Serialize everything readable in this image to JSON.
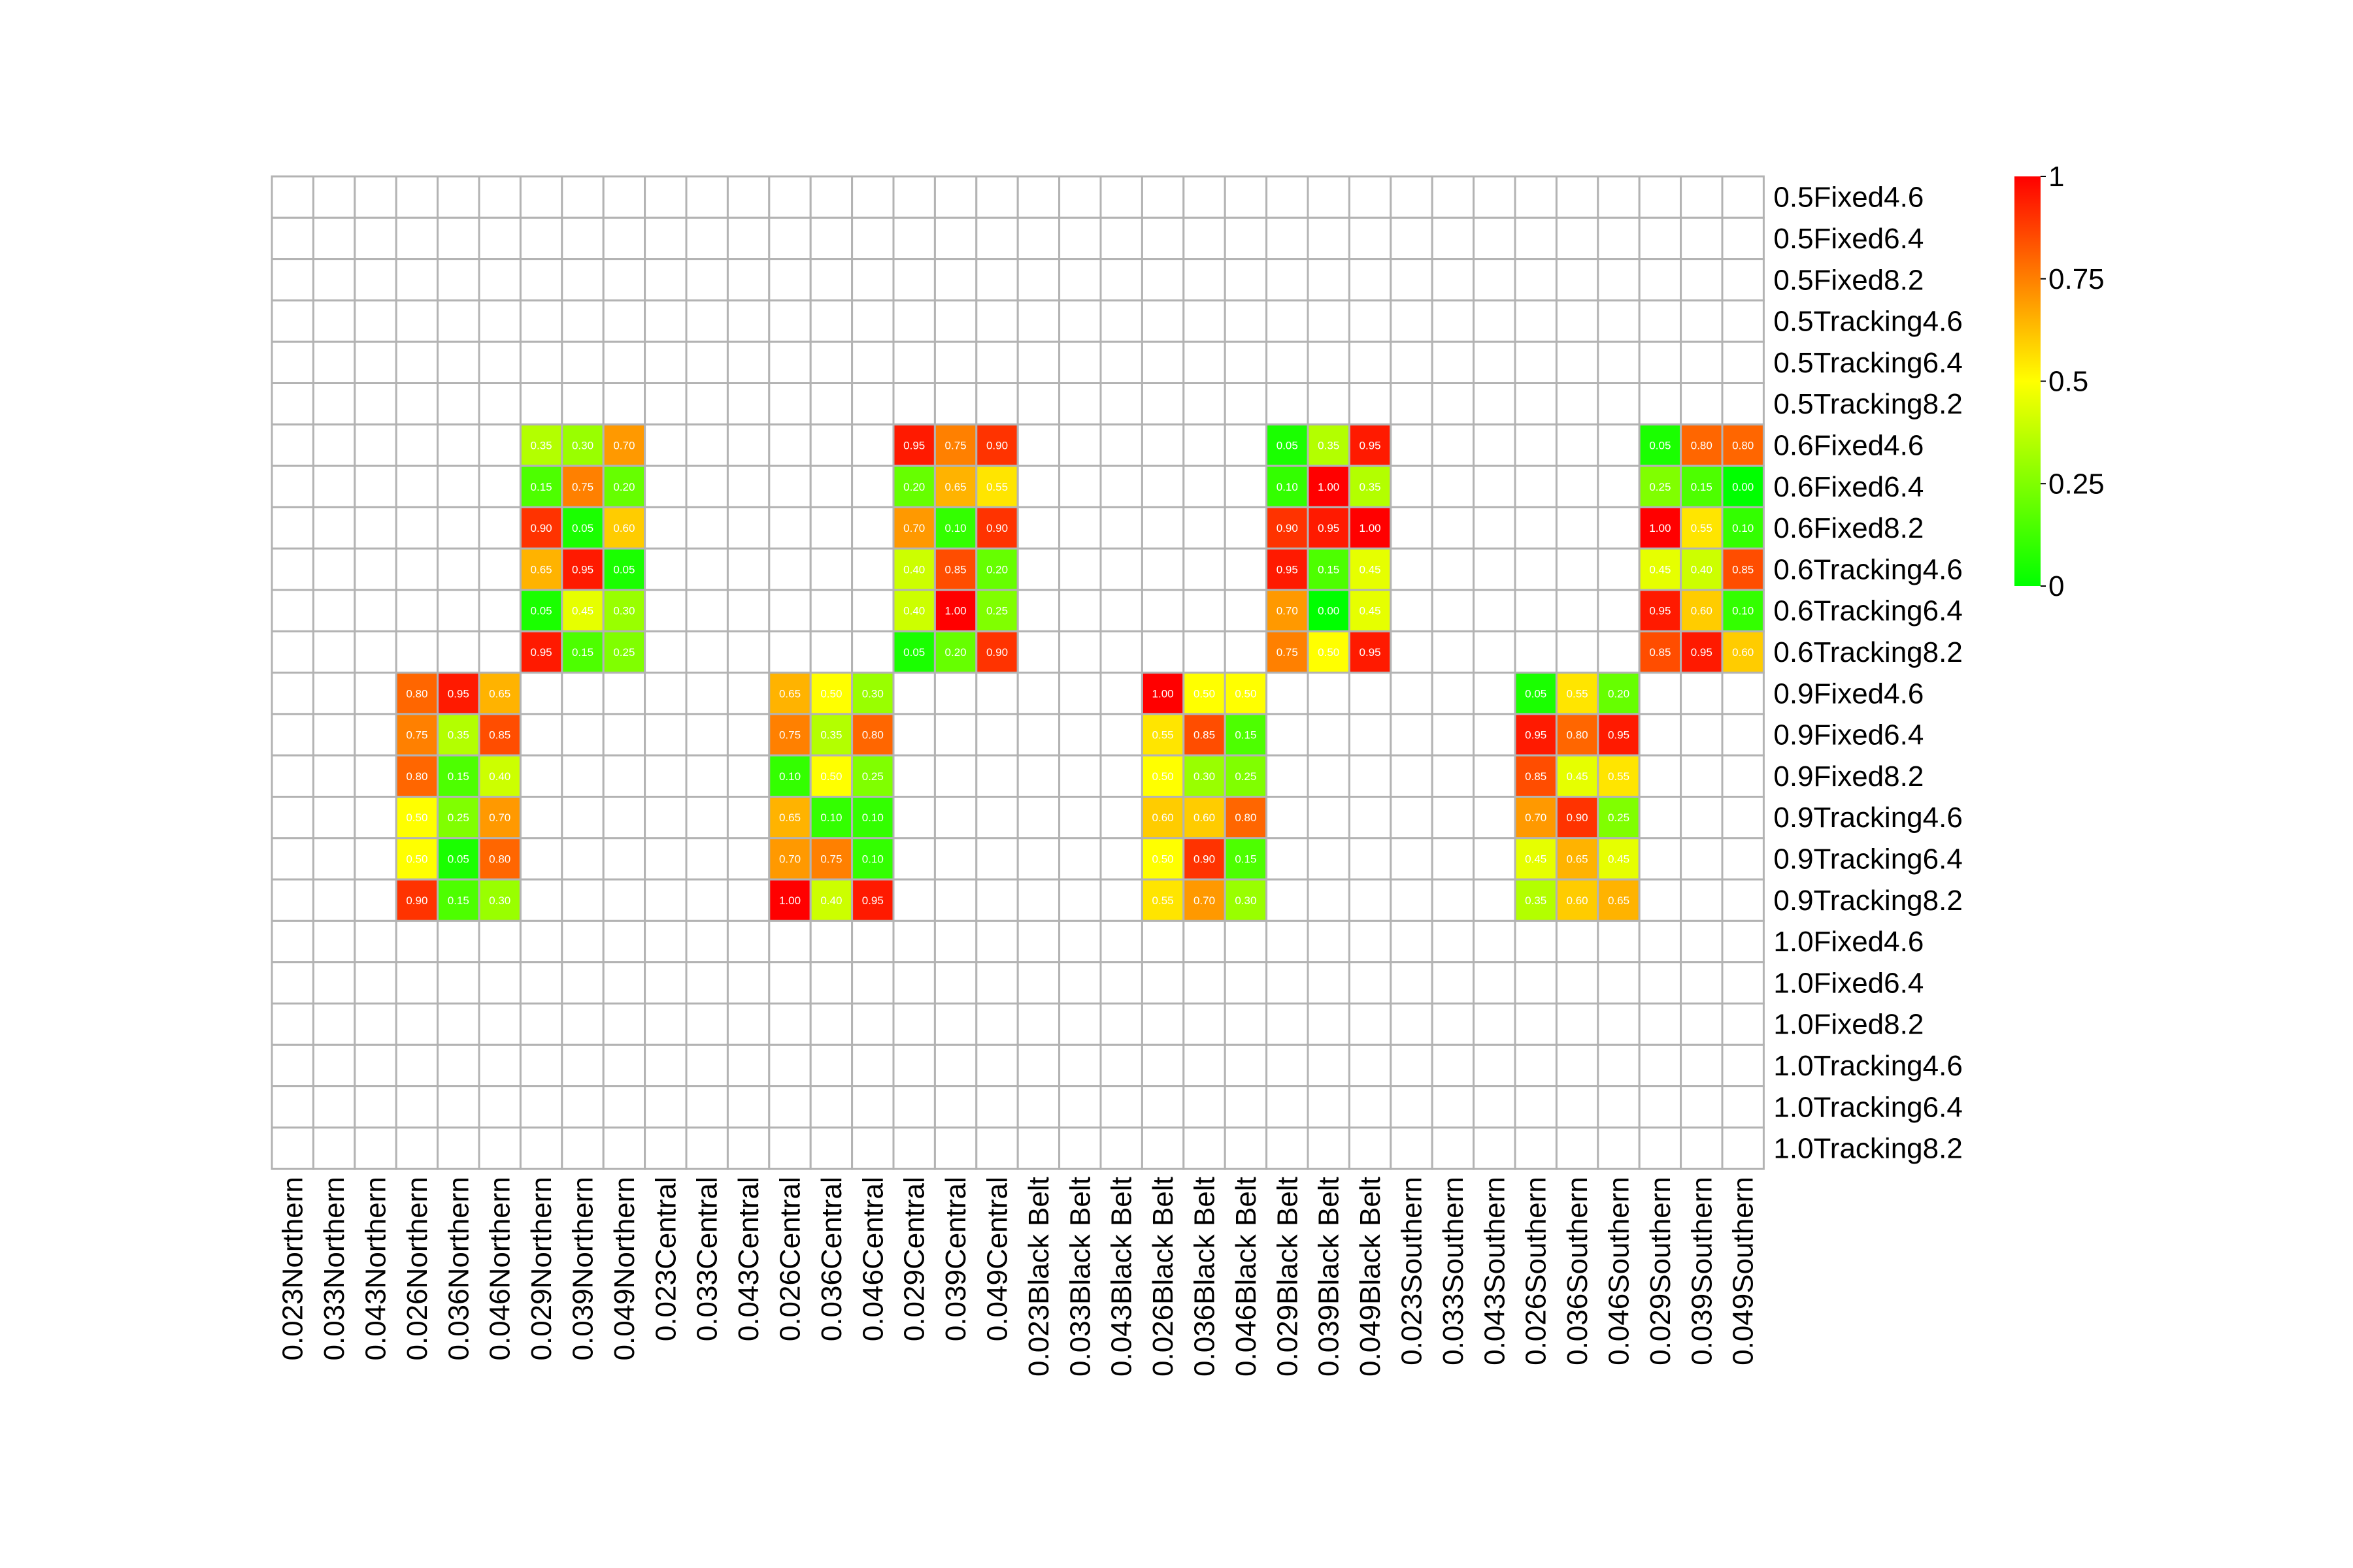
{
  "chart_data": {
    "type": "heatmap",
    "title": "",
    "xlabel": "",
    "ylabel": "",
    "columns": [
      "0.023Northern",
      "0.033Northern",
      "0.043Northern",
      "0.026Northern",
      "0.036Northern",
      "0.046Northern",
      "0.029Northern",
      "0.039Northern",
      "0.049Northern",
      "0.023Central",
      "0.033Central",
      "0.043Central",
      "0.026Central",
      "0.036Central",
      "0.046Central",
      "0.029Central",
      "0.039Central",
      "0.049Central",
      "0.023Black Belt",
      "0.033Black Belt",
      "0.043Black Belt",
      "0.026Black Belt",
      "0.036Black Belt",
      "0.046Black Belt",
      "0.029Black Belt",
      "0.039Black Belt",
      "0.049Black Belt",
      "0.023Southern",
      "0.033Southern",
      "0.043Southern",
      "0.026Southern",
      "0.036Southern",
      "0.046Southern",
      "0.029Southern",
      "0.039Southern",
      "0.049Southern"
    ],
    "rows": [
      "0.5Fixed4.6",
      "0.5Fixed6.4",
      "0.5Fixed8.2",
      "0.5Tracking4.6",
      "0.5Tracking6.4",
      "0.5Tracking8.2",
      "0.6Fixed4.6",
      "0.6Fixed6.4",
      "0.6Fixed8.2",
      "0.6Tracking4.6",
      "0.6Tracking6.4",
      "0.6Tracking8.2",
      "0.9Fixed4.6",
      "0.9Fixed6.4",
      "0.9Fixed8.2",
      "0.9Tracking4.6",
      "0.9Tracking6.4",
      "0.9Tracking8.2",
      "1.0Fixed4.6",
      "1.0Fixed6.4",
      "1.0Fixed8.2",
      "1.0Tracking4.6",
      "1.0Tracking6.4",
      "1.0Tracking8.2"
    ],
    "blocks": [
      {
        "row_start": 6,
        "col_start": 6,
        "values": [
          [
            0.35,
            0.3,
            0.7
          ],
          [
            0.15,
            0.75,
            0.2
          ],
          [
            0.9,
            0.05,
            0.6
          ],
          [
            0.65,
            0.95,
            0.05
          ],
          [
            0.05,
            0.45,
            0.3
          ],
          [
            0.95,
            0.15,
            0.25
          ]
        ]
      },
      {
        "row_start": 6,
        "col_start": 15,
        "values": [
          [
            0.95,
            0.75,
            0.9
          ],
          [
            0.2,
            0.65,
            0.55
          ],
          [
            0.7,
            0.1,
            0.9
          ],
          [
            0.4,
            0.85,
            0.2
          ],
          [
            0.4,
            1.0,
            0.25
          ],
          [
            0.05,
            0.2,
            0.9
          ]
        ]
      },
      {
        "row_start": 6,
        "col_start": 24,
        "values": [
          [
            0.05,
            0.35,
            0.95
          ],
          [
            0.1,
            1.0,
            0.35
          ],
          [
            0.9,
            0.95,
            1.0
          ],
          [
            0.95,
            0.15,
            0.45
          ],
          [
            0.7,
            0.0,
            0.45
          ],
          [
            0.75,
            0.5,
            0.95
          ]
        ]
      },
      {
        "row_start": 6,
        "col_start": 33,
        "values": [
          [
            0.05,
            0.8,
            0.8
          ],
          [
            0.25,
            0.15,
            0.0
          ],
          [
            1.0,
            0.55,
            0.1
          ],
          [
            0.45,
            0.4,
            0.85
          ],
          [
            0.95,
            0.6,
            0.1
          ],
          [
            0.85,
            0.95,
            0.6
          ]
        ]
      },
      {
        "row_start": 12,
        "col_start": 3,
        "values": [
          [
            0.8,
            0.95,
            0.65
          ],
          [
            0.75,
            0.35,
            0.85
          ],
          [
            0.8,
            0.15,
            0.4
          ],
          [
            0.5,
            0.25,
            0.7
          ],
          [
            0.5,
            0.05,
            0.8
          ],
          [
            0.9,
            0.15,
            0.3
          ]
        ]
      },
      {
        "row_start": 12,
        "col_start": 12,
        "values": [
          [
            0.65,
            0.5,
            0.3
          ],
          [
            0.75,
            0.35,
            0.8
          ],
          [
            0.1,
            0.5,
            0.25
          ],
          [
            0.65,
            0.1,
            0.1
          ],
          [
            0.7,
            0.75,
            0.1
          ],
          [
            1.0,
            0.4,
            0.95
          ]
        ]
      },
      {
        "row_start": 12,
        "col_start": 21,
        "values": [
          [
            1.0,
            0.5,
            0.5
          ],
          [
            0.55,
            0.85,
            0.15
          ],
          [
            0.5,
            0.3,
            0.25
          ],
          [
            0.6,
            0.6,
            0.8
          ],
          [
            0.5,
            0.9,
            0.15
          ],
          [
            0.55,
            0.7,
            0.3
          ]
        ]
      },
      {
        "row_start": 12,
        "col_start": 30,
        "values": [
          [
            0.05,
            0.55,
            0.2
          ],
          [
            0.95,
            0.8,
            0.95
          ],
          [
            0.85,
            0.45,
            0.55
          ],
          [
            0.7,
            0.9,
            0.25
          ],
          [
            0.45,
            0.65,
            0.45
          ],
          [
            0.35,
            0.6,
            0.65
          ]
        ]
      }
    ],
    "value_range": [
      0,
      1
    ],
    "colorscale": [
      "#00ff00",
      "#ffff00",
      "#ff0000"
    ],
    "legend": {
      "placement": "right",
      "ticks": [
        {
          "value": 1,
          "label": "1"
        },
        {
          "value": 0.75,
          "label": "0.75"
        },
        {
          "value": 0.5,
          "label": "0.5"
        },
        {
          "value": 0.25,
          "label": "0.25"
        },
        {
          "value": 0,
          "label": "0"
        }
      ]
    },
    "grid": true
  },
  "colors": {
    "grid": "#b3b3b3",
    "empty_cell": "#ffffff",
    "cell_text": "#ffffff"
  }
}
